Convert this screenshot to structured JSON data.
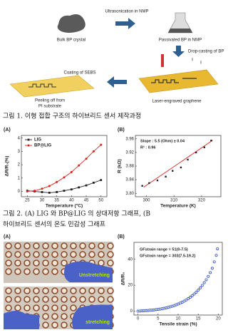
{
  "figure1": {
    "labels": {
      "bulk": "Bulk BP crystal",
      "ultrasonication": "Ultrasonication in NMP",
      "passivated": "Passivated BP in NMP",
      "drop_casting": "Drop-casting of BP",
      "laser": "Laser-engraved graphene",
      "coating": "Coating of SEBS",
      "peeling_1": "Peeling off from",
      "peeling_2": "PI substrate"
    },
    "caption": "그림 1. 이형 접합 구조의 하이브리드 센서 제작과정"
  },
  "figure2": {
    "panel_labels": [
      "(A)",
      "(B)"
    ],
    "caption_lines": [
      "그림 2. (A) LIG 와 BP@LIG 의 상대저항 그래프, (B",
      "하이브리드 센서의 온도 민감성 그래프"
    ],
    "charts": [
      {
        "type": "line",
        "xlabel": "Temperature (°C)",
        "ylabel": "ΔR/R₀(%)",
        "x": [
          25,
          27.5,
          30,
          32.5,
          35,
          37.5,
          40,
          42.5,
          45,
          47.5,
          50
        ],
        "series": [
          {
            "name": "LIG",
            "color": "#222222",
            "values": [
              0.05,
              0.0,
              -0.05,
              -0.1,
              -0.05,
              0.05,
              0.15,
              0.3,
              0.45,
              0.65,
              0.85
            ]
          },
          {
            "name": "BP@LIG",
            "color": "#e02020",
            "values": [
              0.0,
              0.05,
              0.2,
              0.4,
              0.7,
              1.05,
              1.45,
              1.95,
              2.45,
              3.0,
              3.5
            ]
          }
        ],
        "xlim": [
          23,
          52
        ],
        "ylim": [
          -0.4,
          4.2
        ],
        "xticks": [
          25,
          30,
          35,
          40,
          45,
          50
        ],
        "yticks": [
          0,
          1,
          2,
          3,
          4
        ],
        "legend": "upper left",
        "grid": false
      },
      {
        "type": "scatter",
        "xlabel": "Temperature (K)",
        "ylabel": "R (kΩ)",
        "x": [
          298.5,
          301,
          304,
          307,
          309.5,
          312.5,
          315,
          318,
          321,
          323.5
        ],
        "values": [
          3.822,
          3.83,
          3.838,
          3.849,
          3.866,
          3.876,
          3.899,
          3.92,
          3.935,
          3.955
        ],
        "color": "#222222",
        "fit": {
          "x": [
            299,
            324
          ],
          "values": [
            3.818,
            3.9555
          ],
          "color": "#e02020"
        },
        "annotations": [
          "Slope : 5.5 (Ohm) ± 0.04",
          "R² : 0.96"
        ],
        "xlim": [
          296,
          327
        ],
        "ylim": [
          3.79,
          3.97
        ],
        "xticks": [
          300,
          310,
          320
        ],
        "yticks": [
          {
            "value": 3.8,
            "label": "3.80"
          },
          3.84,
          3.88,
          3.92,
          3.96
        ],
        "grid": false
      }
    ]
  },
  "figure3": {
    "panel_labels": [
      "(A)",
      "(B)"
    ],
    "photo_labels": [
      "Unstretching",
      "stretching"
    ],
    "chart": {
      "type": "scatter",
      "xlabel": "Tensile strain (%)",
      "ylabel": "ΔR/R₀",
      "x": [
        0,
        0.5,
        1,
        1.5,
        2,
        2.5,
        3,
        3.5,
        4,
        4.5,
        5,
        5.5,
        6,
        6.5,
        7,
        7.5,
        8,
        8.5,
        9,
        9.5,
        10,
        10.5,
        11,
        11.5,
        12,
        12.5,
        13,
        13.5,
        14,
        14.5,
        15,
        15.5,
        16,
        16.5,
        17,
        17.5,
        18,
        18.5,
        19,
        19.5,
        19.8
      ],
      "values": [
        0,
        0.1,
        0.2,
        0.3,
        0.4,
        0.5,
        0.7,
        0.8,
        1.0,
        1.2,
        1.4,
        1.6,
        1.9,
        2.2,
        2.5,
        2.9,
        3.3,
        3.8,
        4.3,
        4.9,
        5.5,
        6.2,
        6.9,
        7.7,
        8.6,
        9.6,
        10.7,
        11.9,
        13.2,
        14.6,
        16.2,
        17.9,
        19.8,
        21.9,
        24.2,
        26.8,
        29.7,
        33,
        38,
        43,
        48
      ],
      "color": "#2f4fc4",
      "annotations": [
        "GFstrain range = 51(0-7.5)",
        "GFstrain range = 303(7.5-19.2)"
      ],
      "xlim": [
        -1,
        21
      ],
      "ylim": [
        -3,
        53
      ],
      "xticks": [
        0,
        5,
        10,
        15,
        20
      ],
      "yticks": [
        0,
        20,
        40
      ],
      "grid": false
    }
  }
}
